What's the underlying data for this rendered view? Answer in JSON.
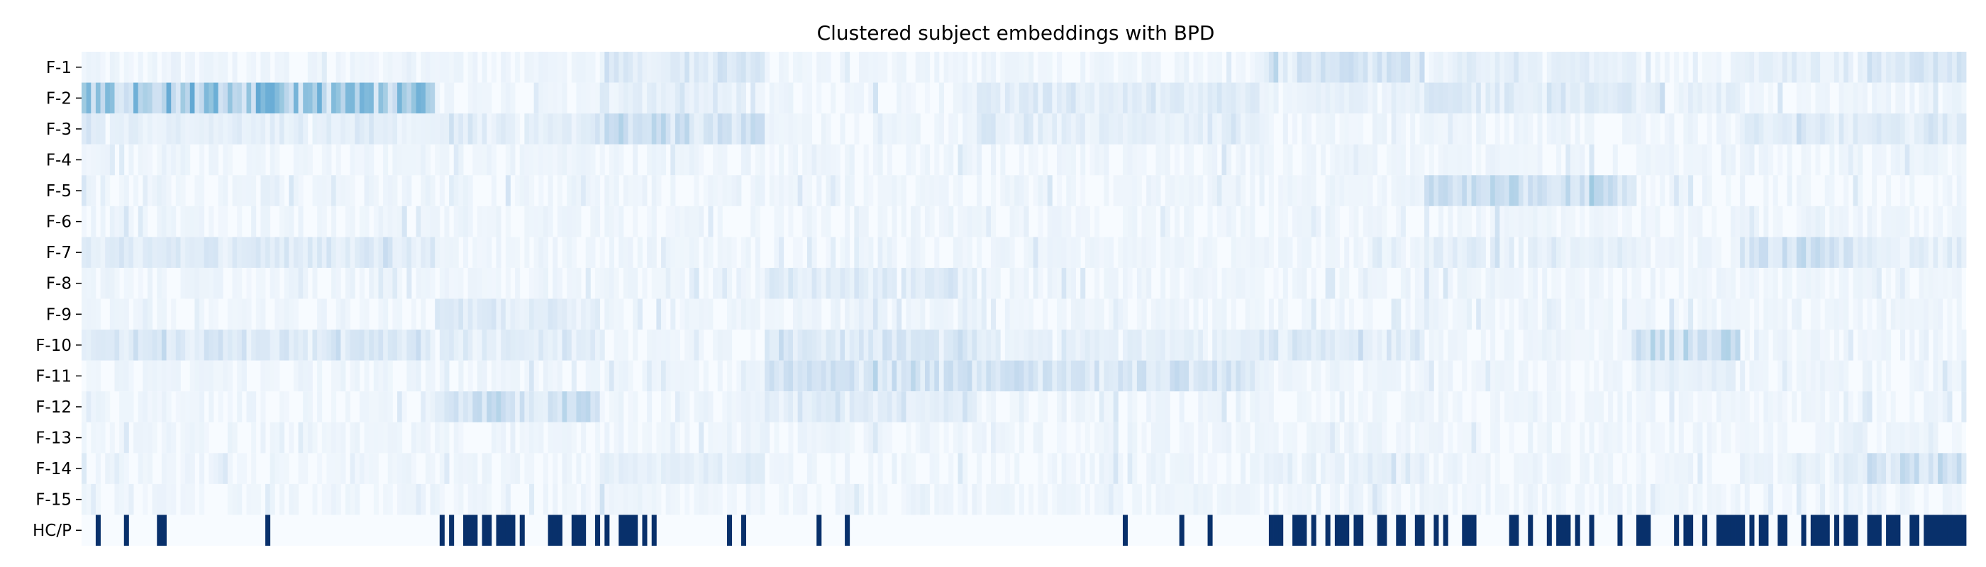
{
  "chart_data": {
    "type": "heatmap",
    "title": "Clustered subject embeddings with BPD",
    "xlabel": "",
    "ylabel": "",
    "rows": [
      "F-1",
      "F-2",
      "F-3",
      "F-4",
      "F-5",
      "F-6",
      "F-7",
      "F-8",
      "F-9",
      "F-10",
      "F-11",
      "F-12",
      "F-13",
      "F-14",
      "F-15",
      "HC/P"
    ],
    "n_subjects": 400,
    "colormap": "Blues",
    "value_range": [
      0,
      1
    ],
    "grid": false,
    "colorbar": false,
    "clusters": [
      {
        "start": 0,
        "end": 75,
        "F-2": 0.32,
        "F-7": 0.09,
        "F-10": 0.12,
        "F-3": 0.06
      },
      {
        "start": 75,
        "end": 110,
        "F-12": 0.17,
        "F-9": 0.09,
        "F-10": 0.08,
        "F-3": 0.07
      },
      {
        "start": 110,
        "end": 145,
        "F-3": 0.19,
        "F-1": 0.11,
        "F-2": 0.06,
        "F-14": 0.07
      },
      {
        "start": 145,
        "end": 190,
        "F-11": 0.15,
        "F-8": 0.09,
        "F-10": 0.12,
        "F-12": 0.07
      },
      {
        "start": 190,
        "end": 250,
        "F-11": 0.14,
        "F-2": 0.09,
        "F-3": 0.06,
        "F-10": 0.06
      },
      {
        "start": 250,
        "end": 285,
        "F-1": 0.14,
        "F-10": 0.11,
        "F-2": 0.05,
        "F-14": 0.06
      },
      {
        "start": 285,
        "end": 330,
        "F-5": 0.17,
        "F-2": 0.1,
        "F-7": 0.06,
        "F-1": 0.06
      },
      {
        "start": 330,
        "end": 352,
        "F-10": 0.19,
        "F-2": 0.06,
        "F-11": 0.05
      },
      {
        "start": 352,
        "end": 378,
        "F-7": 0.17,
        "F-3": 0.08,
        "F-14": 0.06,
        "F-1": 0.07
      },
      {
        "start": 378,
        "end": 400,
        "F-14": 0.16,
        "F-1": 0.12,
        "F-3": 0.09,
        "F-7": 0.07
      }
    ],
    "hc_p": {
      "label": "HC/P",
      "patient_density": [
        {
          "start": 0,
          "end": 75,
          "value": 0.07
        },
        {
          "start": 75,
          "end": 110,
          "value": 0.55
        },
        {
          "start": 110,
          "end": 125,
          "value": 0.4
        },
        {
          "start": 125,
          "end": 250,
          "value": 0.07
        },
        {
          "start": 250,
          "end": 285,
          "value": 0.6
        },
        {
          "start": 285,
          "end": 325,
          "value": 0.45
        },
        {
          "start": 325,
          "end": 400,
          "value": 0.5
        }
      ]
    },
    "colors": {
      "patient": "#08306b",
      "control": "#f7fbff",
      "low": "#f7fbff",
      "high": "#08306b"
    }
  }
}
